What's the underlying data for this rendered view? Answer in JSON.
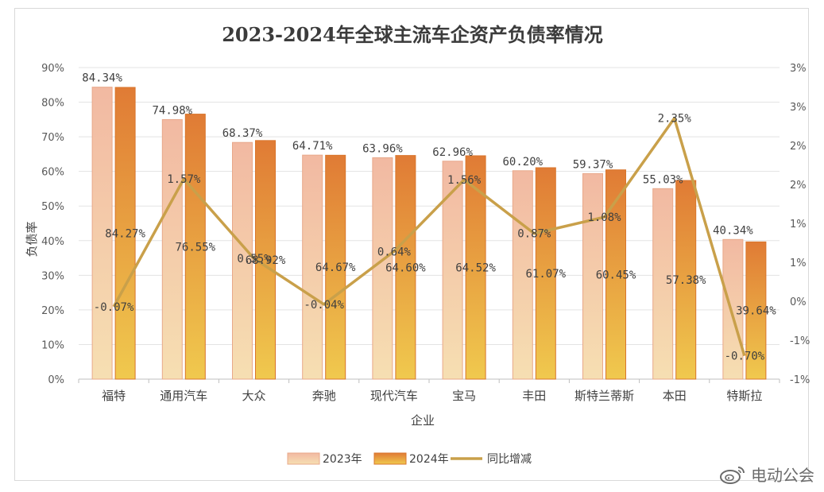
{
  "watermark": {
    "text": "电动公会",
    "icon": "weibo-icon"
  },
  "chart_data": {
    "type": "bar",
    "title": "2023-2024年全球主流车企资产负债率情况",
    "xlabel": "企业",
    "ylabel": "负债率",
    "categories": [
      "福特",
      "通用汽车",
      "大众",
      "奔驰",
      "现代汽车",
      "宝马",
      "丰田",
      "斯特兰蒂斯",
      "本田",
      "特斯拉"
    ],
    "series": [
      {
        "name": "2023年",
        "kind": "bar",
        "axis": "left",
        "values": [
          84.34,
          74.98,
          68.37,
          64.71,
          63.96,
          62.96,
          60.2,
          59.37,
          55.03,
          40.34
        ],
        "labels": [
          "84.34%",
          "74.98%",
          "68.37%",
          "64.71%",
          "63.96%",
          "62.96%",
          "60.20%",
          "59.37%",
          "55.03%",
          "40.34%"
        ],
        "color_top": "#f2b9a2",
        "color_bottom": "#f6dfb2"
      },
      {
        "name": "2024年",
        "kind": "bar",
        "axis": "left",
        "values": [
          84.27,
          76.55,
          68.92,
          64.67,
          64.6,
          64.52,
          61.07,
          60.45,
          57.38,
          39.64
        ],
        "labels": [
          "84.27%",
          "76.55%",
          "68.92%",
          "64.67%",
          "64.60%",
          "64.52%",
          "61.07%",
          "60.45%",
          "57.38%",
          "39.64%"
        ],
        "color_top": "#e07b35",
        "color_bottom": "#f0c94e"
      },
      {
        "name": "同比增减",
        "kind": "line",
        "axis": "right",
        "values": [
          -0.07,
          1.57,
          0.55,
          -0.04,
          0.64,
          1.56,
          0.87,
          1.08,
          2.35,
          -0.7
        ],
        "labels": [
          "-0.07%",
          "1.57%",
          "0.55%",
          "-0.04%",
          "0.64%",
          "1.56%",
          "0.87%",
          "1.08%",
          "2.35%",
          "-0.70%"
        ],
        "color": "#c9a04a"
      }
    ],
    "y_left": {
      "ylim": [
        0,
        90
      ],
      "ticks": [
        0,
        10,
        20,
        30,
        40,
        50,
        60,
        70,
        80,
        90
      ],
      "tick_labels": [
        "0%",
        "10%",
        "20%",
        "30%",
        "40%",
        "50%",
        "60%",
        "70%",
        "80%",
        "90%"
      ]
    },
    "y_right": {
      "ylim": [
        -1,
        3
      ],
      "ticks": [
        -1,
        -0.5,
        0,
        0.5,
        1,
        1.5,
        2,
        2.5,
        3
      ],
      "tick_labels": [
        "-1%",
        "-1%",
        "0%",
        "1%",
        "1%",
        "2%",
        "2%",
        "3%",
        "3%"
      ]
    },
    "grid": true,
    "legend": "bottom",
    "legend_items": [
      "2023年",
      "2024年",
      "同比增减"
    ]
  }
}
